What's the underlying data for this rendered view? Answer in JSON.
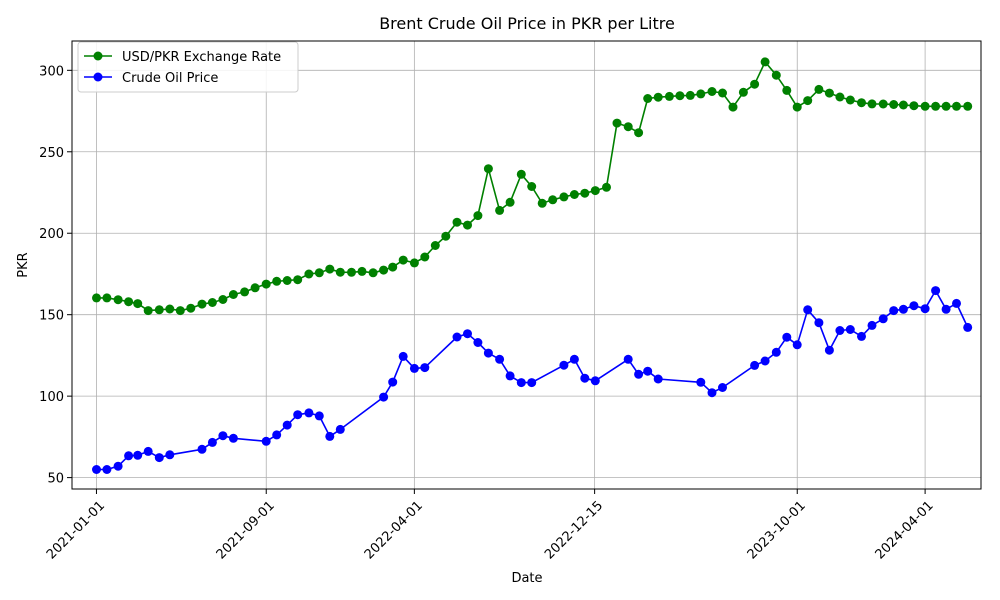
{
  "chart_data": {
    "type": "line",
    "title": "Brent Crude Oil Price in PKR per Litre",
    "xlabel": "Date",
    "ylabel": "PKR",
    "x_tick_labels": [
      "2021-01-01",
      "2021-09-01",
      "2022-04-01",
      "2022-12-15",
      "2023-10-01",
      "2024-04-01"
    ],
    "x_tick_dates": [
      "2021-01-01",
      "2021-09-01",
      "2022-04-01",
      "2022-12-15",
      "2023-10-01",
      "2024-04-01"
    ],
    "y_ticks": [
      50,
      100,
      150,
      200,
      250,
      300
    ],
    "xlim": [
      "2020-11-27",
      "2024-06-20"
    ],
    "ylim": [
      43,
      318
    ],
    "grid": true,
    "legend_position": "top-left",
    "series": [
      {
        "name": "USD/PKR Exchange Rate",
        "color": "#008000",
        "points": [
          [
            "2021-01-01",
            160.3
          ],
          [
            "2021-01-16",
            160.3
          ],
          [
            "2021-02-01",
            159.2
          ],
          [
            "2021-02-16",
            158.0
          ],
          [
            "2021-03-01",
            156.8
          ],
          [
            "2021-03-16",
            152.5
          ],
          [
            "2021-04-01",
            153.0
          ],
          [
            "2021-04-16",
            153.5
          ],
          [
            "2021-05-01",
            152.5
          ],
          [
            "2021-05-16",
            154.0
          ],
          [
            "2021-06-01",
            156.5
          ],
          [
            "2021-06-16",
            157.5
          ],
          [
            "2021-07-01",
            159.3
          ],
          [
            "2021-07-16",
            162.4
          ],
          [
            "2021-08-01",
            164.0
          ],
          [
            "2021-08-16",
            166.5
          ],
          [
            "2021-09-01",
            168.8
          ],
          [
            "2021-09-16",
            170.5
          ],
          [
            "2021-10-01",
            171.0
          ],
          [
            "2021-10-16",
            171.5
          ],
          [
            "2021-11-01",
            175.0
          ],
          [
            "2021-11-16",
            175.7
          ],
          [
            "2021-12-01",
            178.0
          ],
          [
            "2021-12-16",
            176.1
          ],
          [
            "2022-01-01",
            176.0
          ],
          [
            "2022-01-16",
            176.6
          ],
          [
            "2022-02-01",
            175.7
          ],
          [
            "2022-02-16",
            177.4
          ],
          [
            "2022-03-01",
            179.2
          ],
          [
            "2022-03-16",
            183.5
          ],
          [
            "2022-04-01",
            181.8
          ],
          [
            "2022-04-16",
            185.4
          ],
          [
            "2022-05-01",
            192.5
          ],
          [
            "2022-05-16",
            198.2
          ],
          [
            "2022-06-01",
            206.8
          ],
          [
            "2022-06-16",
            205.0
          ],
          [
            "2022-07-01",
            210.8
          ],
          [
            "2022-07-16",
            239.6
          ],
          [
            "2022-08-01",
            214.0
          ],
          [
            "2022-08-16",
            219.0
          ],
          [
            "2022-09-01",
            236.2
          ],
          [
            "2022-09-16",
            228.7
          ],
          [
            "2022-10-01",
            218.4
          ],
          [
            "2022-10-16",
            220.5
          ],
          [
            "2022-11-01",
            222.3
          ],
          [
            "2022-11-16",
            223.8
          ],
          [
            "2022-12-01",
            224.6
          ],
          [
            "2022-12-16",
            226.2
          ],
          [
            "2023-01-01",
            228.2
          ],
          [
            "2023-01-16",
            267.6
          ],
          [
            "2023-02-01",
            265.4
          ],
          [
            "2023-02-16",
            261.7
          ],
          [
            "2023-03-01",
            282.7
          ],
          [
            "2023-03-16",
            283.5
          ],
          [
            "2023-04-01",
            284.0
          ],
          [
            "2023-04-16",
            284.4
          ],
          [
            "2023-05-01",
            284.6
          ],
          [
            "2023-05-16",
            285.5
          ],
          [
            "2023-06-01",
            287.0
          ],
          [
            "2023-06-16",
            286.1
          ],
          [
            "2023-07-01",
            277.4
          ],
          [
            "2023-07-16",
            286.5
          ],
          [
            "2023-08-01",
            291.5
          ],
          [
            "2023-08-16",
            305.2
          ],
          [
            "2023-09-01",
            297.0
          ],
          [
            "2023-09-16",
            287.7
          ],
          [
            "2023-10-01",
            277.4
          ],
          [
            "2023-10-16",
            281.4
          ],
          [
            "2023-11-01",
            288.3
          ],
          [
            "2023-11-16",
            286.0
          ],
          [
            "2023-12-01",
            283.6
          ],
          [
            "2023-12-16",
            281.8
          ],
          [
            "2024-01-01",
            280.1
          ],
          [
            "2024-01-16",
            279.4
          ],
          [
            "2024-02-01",
            279.3
          ],
          [
            "2024-02-16",
            279.0
          ],
          [
            "2024-03-01",
            278.7
          ],
          [
            "2024-03-16",
            278.3
          ],
          [
            "2024-04-01",
            277.9
          ],
          [
            "2024-04-16",
            277.9
          ],
          [
            "2024-05-01",
            277.9
          ],
          [
            "2024-05-16",
            277.9
          ],
          [
            "2024-06-01",
            277.9
          ]
        ]
      },
      {
        "name": "Crude Oil Price",
        "color": "#0000ff",
        "points": [
          [
            "2021-01-01",
            55.0
          ],
          [
            "2021-01-16",
            55.0
          ],
          [
            "2021-02-01",
            57.0
          ],
          [
            "2021-02-16",
            63.4
          ],
          [
            "2021-03-01",
            63.7
          ],
          [
            "2021-03-16",
            66.1
          ],
          [
            "2021-04-01",
            62.3
          ],
          [
            "2021-04-16",
            64.0
          ],
          [
            "2021-06-01",
            67.4
          ],
          [
            "2021-06-16",
            71.6
          ],
          [
            "2021-07-01",
            75.7
          ],
          [
            "2021-07-16",
            74.1
          ],
          [
            "2021-09-01",
            72.3
          ],
          [
            "2021-09-16",
            76.2
          ],
          [
            "2021-10-01",
            82.2
          ],
          [
            "2021-10-16",
            88.6
          ],
          [
            "2021-11-01",
            89.7
          ],
          [
            "2021-11-16",
            87.9
          ],
          [
            "2021-12-01",
            75.3
          ],
          [
            "2021-12-16",
            79.6
          ],
          [
            "2022-02-16",
            99.4
          ],
          [
            "2022-03-01",
            108.6
          ],
          [
            "2022-03-16",
            124.4
          ],
          [
            "2022-04-01",
            117.0
          ],
          [
            "2022-04-16",
            117.5
          ],
          [
            "2022-06-01",
            136.3
          ],
          [
            "2022-06-16",
            138.3
          ],
          [
            "2022-07-01",
            132.9
          ],
          [
            "2022-07-16",
            126.4
          ],
          [
            "2022-08-01",
            122.6
          ],
          [
            "2022-08-16",
            112.4
          ],
          [
            "2022-09-01",
            108.3
          ],
          [
            "2022-09-16",
            108.3
          ],
          [
            "2022-11-01",
            119.0
          ],
          [
            "2022-11-16",
            122.6
          ],
          [
            "2022-12-01",
            111.0
          ],
          [
            "2022-12-16",
            109.4
          ],
          [
            "2023-02-01",
            122.6
          ],
          [
            "2023-02-16",
            113.4
          ],
          [
            "2023-03-01",
            115.3
          ],
          [
            "2023-03-16",
            110.5
          ],
          [
            "2023-05-16",
            108.5
          ],
          [
            "2023-06-01",
            102.1
          ],
          [
            "2023-06-16",
            105.3
          ],
          [
            "2023-08-01",
            118.9
          ],
          [
            "2023-08-16",
            121.6
          ],
          [
            "2023-09-01",
            126.9
          ],
          [
            "2023-09-16",
            136.2
          ],
          [
            "2023-10-01",
            131.5
          ],
          [
            "2023-10-16",
            153.0
          ],
          [
            "2023-11-01",
            145.1
          ],
          [
            "2023-11-16",
            128.2
          ],
          [
            "2023-12-01",
            140.3
          ],
          [
            "2023-12-16",
            140.9
          ],
          [
            "2024-01-01",
            136.7
          ],
          [
            "2024-01-16",
            143.4
          ],
          [
            "2024-02-01",
            147.5
          ],
          [
            "2024-02-16",
            152.5
          ],
          [
            "2024-03-01",
            153.3
          ],
          [
            "2024-03-16",
            155.5
          ],
          [
            "2024-04-01",
            153.7
          ],
          [
            "2024-04-16",
            164.8
          ],
          [
            "2024-05-01",
            153.3
          ],
          [
            "2024-05-16",
            156.9
          ],
          [
            "2024-06-01",
            142.2
          ]
        ]
      }
    ]
  }
}
